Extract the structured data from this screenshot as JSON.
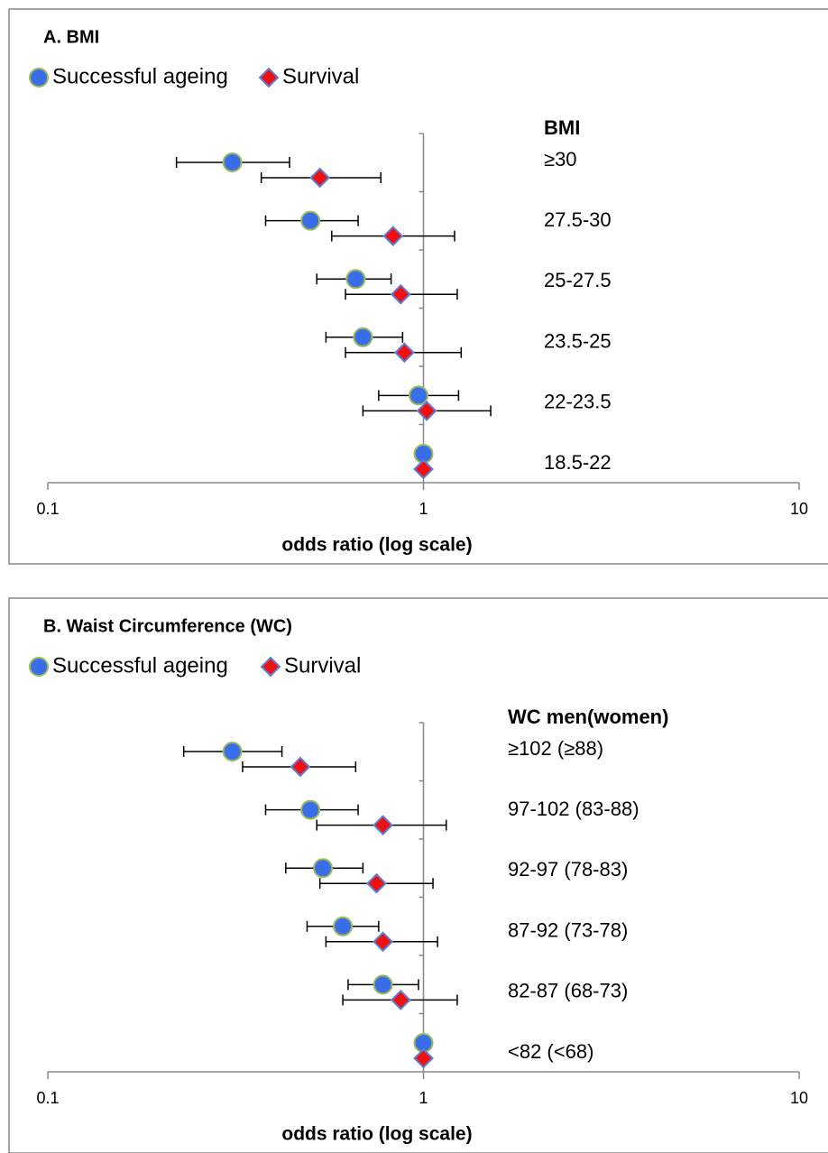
{
  "chart_data": [
    {
      "type": "forest",
      "title": "A. BMI",
      "category_header": "BMI",
      "categories": [
        "≥30",
        "27.5-30",
        "25-27.5",
        "23.5-25",
        "22-23.5",
        "18.5-22"
      ],
      "series": [
        {
          "name": "Successful ageing",
          "marker": "circle",
          "color": "#3a6ee8",
          "edge_color": "#9bbb59",
          "values": [
            0.31,
            0.5,
            0.66,
            0.69,
            0.97,
            1
          ],
          "lower": [
            0.22,
            0.38,
            0.52,
            0.55,
            0.76,
            null
          ],
          "upper": [
            0.44,
            0.67,
            0.82,
            0.88,
            1.24,
            null
          ]
        },
        {
          "name": "Survival",
          "marker": "diamond",
          "color": "#ee1111",
          "edge_color": "#5b7fd6",
          "values": [
            0.53,
            0.83,
            0.87,
            0.89,
            1.02,
            1
          ],
          "lower": [
            0.37,
            0.57,
            0.62,
            0.62,
            0.69,
            null
          ],
          "upper": [
            0.77,
            1.21,
            1.23,
            1.26,
            1.51,
            null
          ]
        }
      ],
      "xlabel": "odds ratio (log scale)",
      "xscale": "log",
      "xlim": [
        0.1,
        10
      ],
      "xticks": [
        0.1,
        1,
        10
      ]
    },
    {
      "type": "forest",
      "title": "B. Waist Circumference (WC)",
      "category_header": "WC men(women)",
      "categories": [
        "≥102 (≥88)",
        "97-102 (83-88)",
        "92-97 (78-83)",
        "87-92 (73-78)",
        "82-87 (68-73)",
        "<82 (<68)"
      ],
      "series": [
        {
          "name": "Successful ageing",
          "marker": "circle",
          "color": "#3a6ee8",
          "edge_color": "#9bbb59",
          "values": [
            0.31,
            0.5,
            0.54,
            0.61,
            0.78,
            1
          ],
          "lower": [
            0.23,
            0.38,
            0.43,
            0.49,
            0.63,
            null
          ],
          "upper": [
            0.42,
            0.67,
            0.69,
            0.76,
            0.97,
            null
          ]
        },
        {
          "name": "Survival",
          "marker": "diamond",
          "color": "#ee1111",
          "edge_color": "#5b7fd6",
          "values": [
            0.47,
            0.78,
            0.75,
            0.78,
            0.87,
            1
          ],
          "lower": [
            0.33,
            0.52,
            0.53,
            0.55,
            0.61,
            null
          ],
          "upper": [
            0.66,
            1.15,
            1.06,
            1.09,
            1.23,
            null
          ]
        }
      ],
      "xlabel": "odds ratio (log scale)",
      "xscale": "log",
      "xlim": [
        0.1,
        10
      ],
      "xticks": [
        0.1,
        1,
        10
      ]
    }
  ]
}
